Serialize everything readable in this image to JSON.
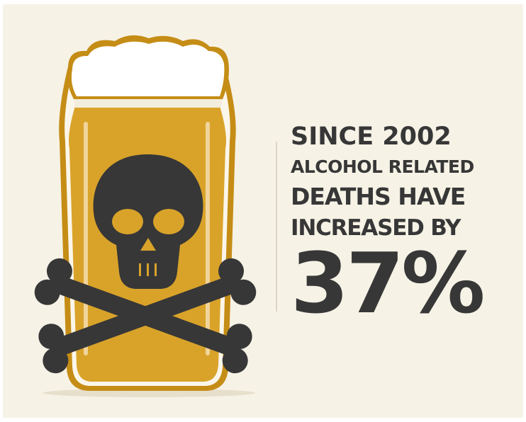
{
  "headline": {
    "line1": "SINCE 2002",
    "line2": "ALCOHOL RELATED",
    "line3": "DEATHS HAVE",
    "line4": "INCREASED BY",
    "value": "37%"
  },
  "colors": {
    "background": "#f6f2e6",
    "beer": "#d9a32a",
    "glass_outline": "#c58d16",
    "foam": "#ffffff",
    "skull": "#373737",
    "text": "#373737"
  },
  "icons": [
    "beer-glass-icon",
    "skull-icon",
    "crossbones-icon"
  ]
}
